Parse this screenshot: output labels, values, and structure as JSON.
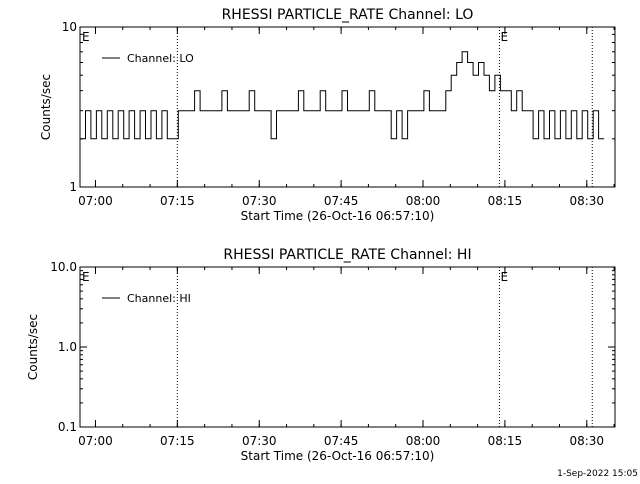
{
  "footer_timestamp": "1-Sep-2022 15:05",
  "chart_data": [
    {
      "type": "line",
      "title": "RHESSI PARTICLE_RATE Channel: LO",
      "xlabel": "Start Time (26-Oct-16 06:57:10)",
      "ylabel": "Counts/sec",
      "yscale": "log",
      "ylim": [
        1,
        10
      ],
      "ytick_labels": [
        "1",
        "10"
      ],
      "xlim": [
        "06:57:10",
        "08:35:10"
      ],
      "xtick_labels": [
        "07:00",
        "07:15",
        "07:30",
        "07:45",
        "08:00",
        "08:15",
        "08:30"
      ],
      "legend": "Channel: LO",
      "legend_position": "top-left",
      "vlines": [
        "07:15",
        "08:14",
        "08:31"
      ],
      "markers": [
        {
          "label": "E",
          "time": "06:57"
        },
        {
          "label": "E",
          "time": "08:14"
        }
      ],
      "series": [
        {
          "values_note": "step-like count rate; times in minutes after 06:57:10",
          "points": [
            [
              0.0,
              2
            ],
            [
              1.0,
              3
            ],
            [
              2.0,
              2
            ],
            [
              3.0,
              3
            ],
            [
              4.0,
              2
            ],
            [
              5.0,
              3
            ],
            [
              6.0,
              2
            ],
            [
              7.0,
              3
            ],
            [
              8.0,
              2
            ],
            [
              9.0,
              3
            ],
            [
              10.0,
              2
            ],
            [
              11.0,
              3
            ],
            [
              12.0,
              2
            ],
            [
              13.0,
              3
            ],
            [
              14.0,
              2
            ],
            [
              15.0,
              3
            ],
            [
              16.0,
              2
            ],
            [
              17.0,
              2
            ],
            [
              18.0,
              3
            ],
            [
              20.0,
              3
            ],
            [
              21.0,
              4
            ],
            [
              22.0,
              3
            ],
            [
              25.0,
              3
            ],
            [
              26.0,
              4
            ],
            [
              27.0,
              3
            ],
            [
              30.0,
              3
            ],
            [
              31.0,
              4
            ],
            [
              32.0,
              3
            ],
            [
              34.0,
              3
            ],
            [
              35.0,
              2
            ],
            [
              36.0,
              3
            ],
            [
              39.0,
              3
            ],
            [
              40.0,
              4
            ],
            [
              41.0,
              3
            ],
            [
              43.0,
              3
            ],
            [
              44.0,
              4
            ],
            [
              45.0,
              3
            ],
            [
              47.0,
              3
            ],
            [
              48.0,
              4
            ],
            [
              49.0,
              3
            ],
            [
              52.0,
              3
            ],
            [
              53.0,
              4
            ],
            [
              54.0,
              3
            ],
            [
              56.0,
              3
            ],
            [
              57.0,
              2
            ],
            [
              58.0,
              3
            ],
            [
              59.0,
              2
            ],
            [
              60.0,
              3
            ],
            [
              62.0,
              3
            ],
            [
              63.0,
              4
            ],
            [
              64.0,
              3
            ],
            [
              66.0,
              3
            ],
            [
              67.0,
              4
            ],
            [
              68.0,
              5
            ],
            [
              69.0,
              6
            ],
            [
              70.0,
              7
            ],
            [
              71.0,
              6
            ],
            [
              72.0,
              5
            ],
            [
              73.0,
              6
            ],
            [
              74.0,
              5
            ],
            [
              75.0,
              4
            ],
            [
              76.0,
              5
            ],
            [
              77.0,
              4
            ],
            [
              78.0,
              4
            ],
            [
              79.0,
              3
            ],
            [
              80.0,
              4
            ],
            [
              81.0,
              3
            ],
            [
              82.0,
              3
            ],
            [
              83.0,
              2
            ],
            [
              84.0,
              3
            ],
            [
              85.0,
              2
            ],
            [
              86.0,
              3
            ],
            [
              87.0,
              2
            ],
            [
              88.0,
              3
            ],
            [
              89.0,
              2
            ],
            [
              90.0,
              3
            ],
            [
              91.0,
              2
            ],
            [
              92.0,
              3
            ],
            [
              93.0,
              2
            ],
            [
              94.0,
              3
            ],
            [
              95.0,
              2
            ],
            [
              96.0,
              2
            ]
          ]
        }
      ]
    },
    {
      "type": "line",
      "title": "RHESSI PARTICLE_RATE Channel: HI",
      "xlabel": "Start Time (26-Oct-16 06:57:10)",
      "ylabel": "Counts/sec",
      "yscale": "log",
      "ylim": [
        0.1,
        10.0
      ],
      "ytick_labels": [
        "0.1",
        "1.0",
        "10.0"
      ],
      "xlim": [
        "06:57:10",
        "08:35:10"
      ],
      "xtick_labels": [
        "07:00",
        "07:15",
        "07:30",
        "07:45",
        "08:00",
        "08:15",
        "08:30"
      ],
      "legend": "Channel: HI",
      "legend_position": "top-left",
      "vlines": [
        "07:15",
        "08:14",
        "08:31"
      ],
      "markers": [
        {
          "label": "E",
          "time": "06:57"
        },
        {
          "label": "E",
          "time": "08:14"
        }
      ],
      "series": [
        {
          "points": []
        }
      ]
    }
  ]
}
